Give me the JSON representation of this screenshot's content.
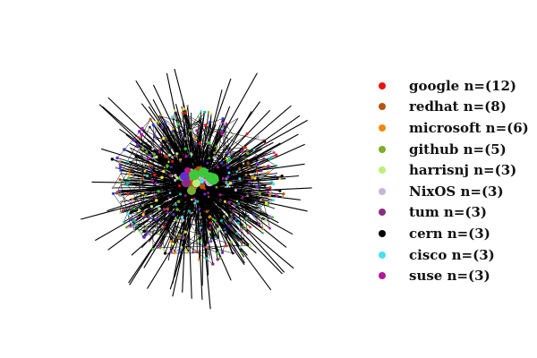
{
  "chart_data": {
    "type": "network",
    "legend_position": "right",
    "grid": false,
    "edge_color": "#000000",
    "groups": [
      {
        "label": "google n=(12)",
        "count": 12,
        "color": "#e8140c"
      },
      {
        "label": "redhat n=(8)",
        "count": 8,
        "color": "#b4560f"
      },
      {
        "label": "microsoft n=(6)",
        "count": 6,
        "color": "#f0880a"
      },
      {
        "label": "github n=(5)",
        "count": 5,
        "color": "#7aae2c"
      },
      {
        "label": "harrisnj n=(3)",
        "count": 3,
        "color": "#b9f07c"
      },
      {
        "label": "NixOS n=(3)",
        "count": 3,
        "color": "#c8b4d8"
      },
      {
        "label": "tum n=(3)",
        "count": 3,
        "color": "#8a2c82"
      },
      {
        "label": "cern n=(3)",
        "count": 3,
        "color": "#050505"
      },
      {
        "label": "cisco n=(3)",
        "count": 3,
        "color": "#48e0f2"
      },
      {
        "label": "suse n=(3)",
        "count": 3,
        "color": "#b4169c"
      }
    ]
  }
}
